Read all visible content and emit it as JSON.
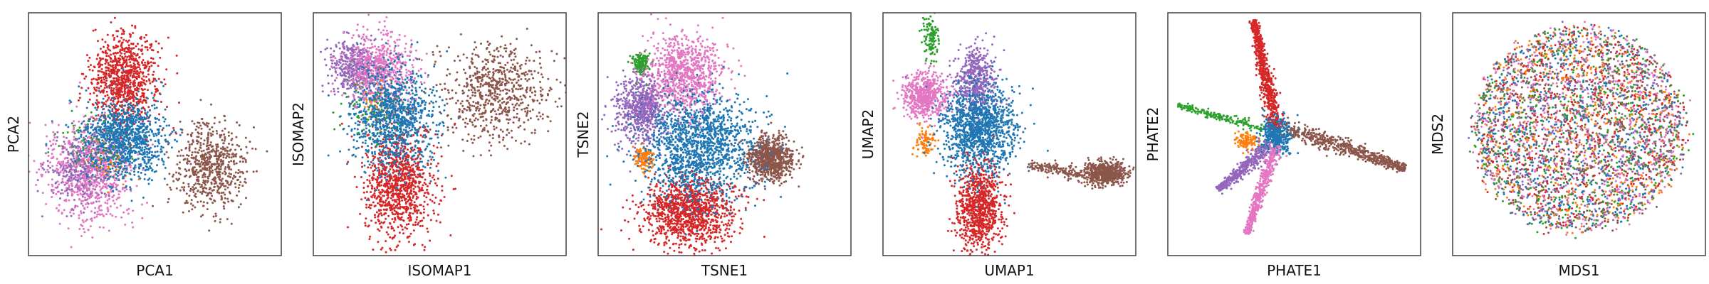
{
  "palette": {
    "blue": "#1f77b4",
    "orange": "#ff7f0e",
    "green": "#2ca02c",
    "red": "#d62728",
    "purple": "#9467bd",
    "brown": "#8c564b",
    "pink": "#e377c2"
  },
  "chart_data": [
    {
      "type": "scatter",
      "xlabel": "PCA1",
      "ylabel": "PCA2",
      "xlim": [
        0,
        100
      ],
      "ylim": [
        0,
        100
      ],
      "ticks": "none",
      "grid": false,
      "clusters": [
        {
          "color": "#8c564b",
          "cx": 72,
          "cy": 37,
          "sx": 7,
          "sy": 9,
          "n": 650
        },
        {
          "color": "#2ca02c",
          "cx": 24,
          "cy": 46,
          "sx": 7,
          "sy": 6,
          "n": 90
        },
        {
          "color": "#e377c2",
          "cx": 24,
          "cy": 34,
          "sx": 8,
          "sy": 10,
          "n": 750
        },
        {
          "color": "#9467bd",
          "cx": 20,
          "cy": 35,
          "sx": 6,
          "sy": 8,
          "n": 300
        },
        {
          "color": "#ff7f0e",
          "cx": 32,
          "cy": 40,
          "sx": 5,
          "sy": 5,
          "n": 70
        },
        {
          "color": "#d62728",
          "cx": 38,
          "cy": 73,
          "sx": 7,
          "sy": 9,
          "n": 900
        },
        {
          "color": "#1f77b4",
          "cx": 38,
          "cy": 48,
          "sx": 8,
          "sy": 8,
          "n": 1100
        }
      ]
    },
    {
      "type": "scatter",
      "xlabel": "ISOMAP1",
      "ylabel": "ISOMAP2",
      "xlim": [
        0,
        100
      ],
      "ylim": [
        0,
        100
      ],
      "ticks": "none",
      "grid": false,
      "clusters": [
        {
          "color": "#8c564b",
          "cx": 73,
          "cy": 67,
          "sx": 11,
          "sy": 10,
          "n": 700
        },
        {
          "color": "#d62728",
          "cx": 34,
          "cy": 29,
          "sx": 7,
          "sy": 11,
          "n": 1000
        },
        {
          "color": "#2ca02c",
          "cx": 20,
          "cy": 62,
          "sx": 5,
          "sy": 8,
          "n": 90
        },
        {
          "color": "#9467bd",
          "cx": 16,
          "cy": 77,
          "sx": 5,
          "sy": 6,
          "n": 400
        },
        {
          "color": "#e377c2",
          "cx": 26,
          "cy": 77,
          "sx": 7,
          "sy": 7,
          "n": 600
        },
        {
          "color": "#ff7f0e",
          "cx": 28,
          "cy": 62,
          "sx": 5,
          "sy": 6,
          "n": 70
        },
        {
          "color": "#1f77b4",
          "cx": 32,
          "cy": 57,
          "sx": 8,
          "sy": 10,
          "n": 1100
        }
      ]
    },
    {
      "type": "scatter",
      "xlabel": "TSNE1",
      "ylabel": "TSNE2",
      "xlim": [
        0,
        100
      ],
      "ylim": [
        0,
        100
      ],
      "ticks": "none",
      "grid": false,
      "clusters": [
        {
          "color": "#8c564b",
          "cx": 68,
          "cy": 40,
          "sx": 4.5,
          "sy": 4.5,
          "n": 800
        },
        {
          "color": "#d62728",
          "cx": 36,
          "cy": 18,
          "sx": 9,
          "sy": 7,
          "n": 1200
        },
        {
          "color": "#2ca02c",
          "cx": 17,
          "cy": 79,
          "sx": 1.8,
          "sy": 2.5,
          "n": 150
        },
        {
          "color": "#ff7f0e",
          "cx": 18,
          "cy": 40,
          "sx": 1.8,
          "sy": 2.5,
          "n": 130
        },
        {
          "color": "#9467bd",
          "cx": 17,
          "cy": 60,
          "sx": 5,
          "sy": 7,
          "n": 700
        },
        {
          "color": "#e377c2",
          "cx": 34,
          "cy": 75,
          "sx": 7,
          "sy": 8,
          "n": 900
        },
        {
          "color": "#1f77b4",
          "cx": 40,
          "cy": 45,
          "sx": 11,
          "sy": 11,
          "n": 1500
        }
      ]
    },
    {
      "type": "scatter",
      "xlabel": "UMAP1",
      "ylabel": "UMAP2",
      "xlim": [
        0,
        100
      ],
      "ylim": [
        0,
        100
      ],
      "ticks": "none",
      "grid": false,
      "clusters": [
        {
          "color": "#8c564b",
          "cx": 88,
          "cy": 34,
          "sx": 4,
          "sy": 2.4,
          "n": 600
        },
        {
          "color": "#d62728",
          "cx": 38,
          "cy": 20,
          "sx": 4.5,
          "sy": 9,
          "n": 900
        },
        {
          "color": "#2ca02c",
          "cx": 19,
          "cy": 90,
          "sx": 1.5,
          "sy": 4.5,
          "n": 120
        },
        {
          "color": "#ff7f0e",
          "cx": 17,
          "cy": 47,
          "sx": 2,
          "sy": 2.5,
          "n": 90
        },
        {
          "color": "#e377c2",
          "cx": 17,
          "cy": 66,
          "sx": 4.5,
          "sy": 4.5,
          "n": 600
        },
        {
          "color": "#9467bd",
          "cx": 37,
          "cy": 72,
          "sx": 4,
          "sy": 7,
          "n": 500
        },
        {
          "color": "#1f77b4",
          "cx": 38,
          "cy": 52,
          "sx": 7,
          "sy": 9,
          "n": 1300
        }
      ],
      "bridges": [
        {
          "color": "#8c564b",
          "x0": 58,
          "y0": 37,
          "x1": 78,
          "y1": 34,
          "n": 150
        }
      ]
    },
    {
      "type": "scatter",
      "xlabel": "PHATE1",
      "ylabel": "PHATE2",
      "xlim": [
        0,
        100
      ],
      "ylim": [
        0,
        100
      ],
      "ticks": "none",
      "grid": false,
      "center": [
        43,
        50
      ],
      "clusters": [
        {
          "color": "#1f77b4",
          "cx": 43,
          "cy": 50,
          "sx": 3,
          "sy": 4,
          "n": 500
        },
        {
          "color": "#ff7f0e",
          "cx": 31,
          "cy": 47,
          "sx": 2.2,
          "sy": 1.8,
          "n": 120
        }
      ],
      "arms": [
        {
          "color": "#d62728",
          "x0": 43,
          "y0": 52,
          "x1": 34,
          "y1": 97,
          "w": 1.8,
          "n": 700
        },
        {
          "color": "#8c564b",
          "x0": 46,
          "y0": 53,
          "x1": 94,
          "y1": 36,
          "w": 2.2,
          "n": 600
        },
        {
          "color": "#2ca02c",
          "x0": 38,
          "y0": 52,
          "x1": 4,
          "y1": 62,
          "w": 1.2,
          "n": 200
        },
        {
          "color": "#9467bd",
          "x0": 41,
          "y0": 46,
          "x1": 20,
          "y1": 27,
          "w": 1.8,
          "n": 400
        },
        {
          "color": "#e377c2",
          "x0": 43,
          "y0": 46,
          "x1": 31,
          "y1": 9,
          "w": 1.6,
          "n": 500
        }
      ]
    },
    {
      "type": "scatter",
      "xlabel": "MDS1",
      "ylabel": "MDS2",
      "xlim": [
        0,
        100
      ],
      "ylim": [
        0,
        100
      ],
      "ticks": "none",
      "grid": false,
      "disc": {
        "cx": 50,
        "cy": 52,
        "r": 42,
        "n": 4200,
        "colors": [
          "#8c564b",
          "#1f77b4",
          "#d62728",
          "#e377c2",
          "#9467bd",
          "#ff7f0e",
          "#2ca02c"
        ]
      }
    }
  ]
}
